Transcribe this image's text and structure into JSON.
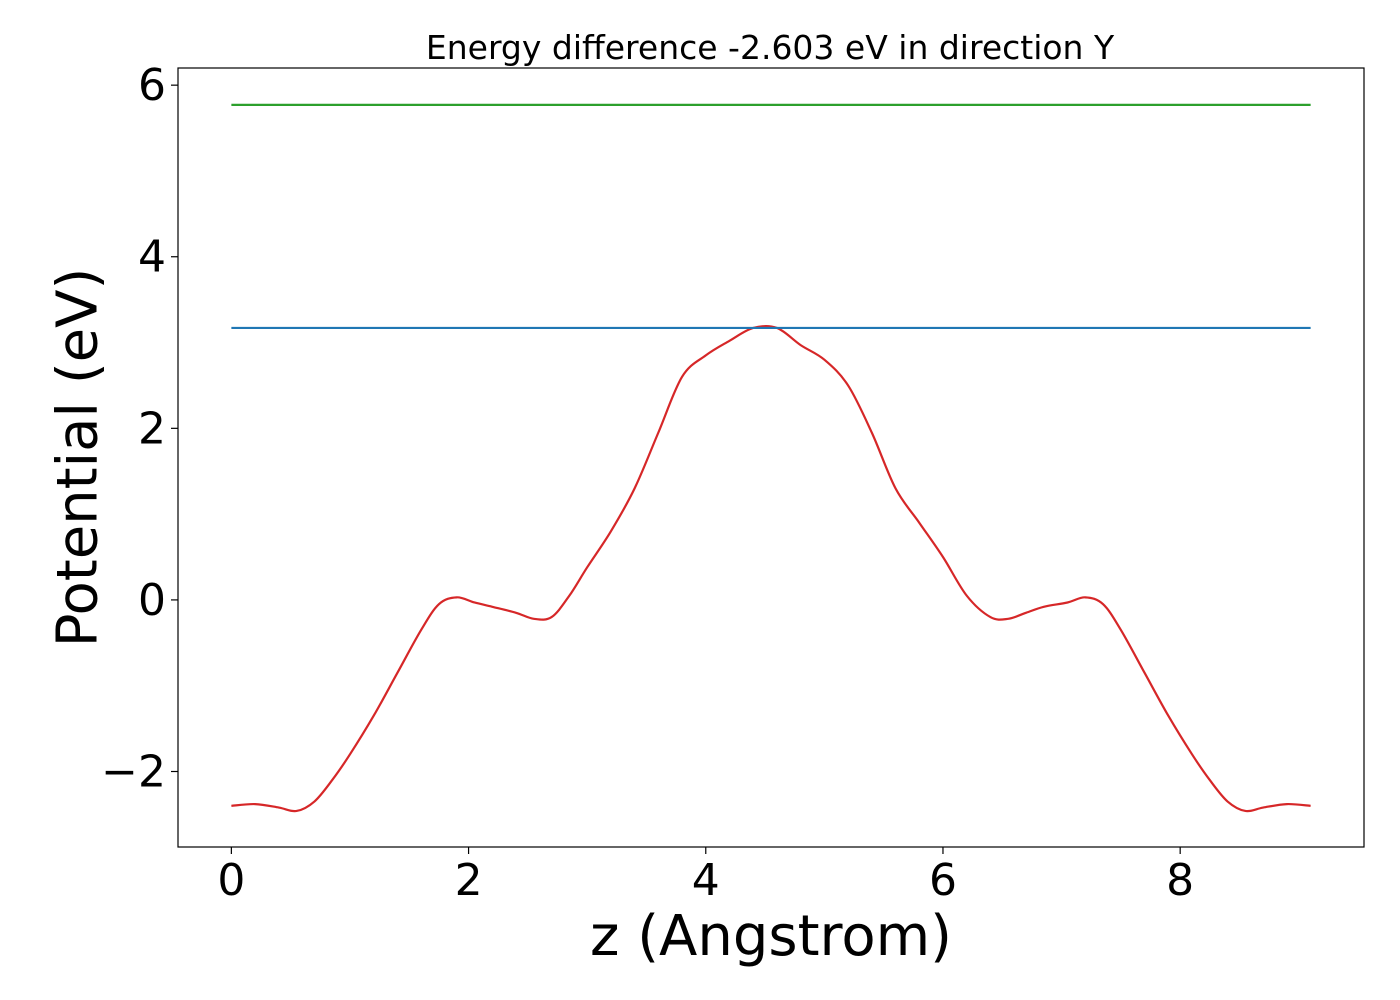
{
  "chart_data": {
    "type": "line",
    "title": "Energy difference -2.603 eV in direction Y",
    "xlabel": "z (Angstrom)",
    "ylabel": "Potential (eV)",
    "xlim": [
      -0.45,
      9.55
    ],
    "ylim": [
      -2.88,
      6.2
    ],
    "xticks": [
      0,
      2,
      4,
      6,
      8
    ],
    "xtick_labels": [
      "0",
      "2",
      "4",
      "6",
      "8"
    ],
    "yticks": [
      -2,
      0,
      2,
      4,
      6
    ],
    "ytick_labels": [
      "−2",
      "0",
      "2",
      "4",
      "6"
    ],
    "grid": false,
    "legend": "none",
    "series": [
      {
        "color": "#d62728",
        "x": [
          0,
          0.2,
          0.4,
          0.55,
          0.7,
          0.85,
          1.0,
          1.2,
          1.4,
          1.6,
          1.75,
          1.9,
          2.05,
          2.2,
          2.4,
          2.55,
          2.7,
          2.85,
          3.0,
          3.2,
          3.4,
          3.6,
          3.8,
          4.0,
          4.2,
          4.4,
          4.6,
          4.8,
          5.0,
          5.2,
          5.4,
          5.6,
          5.8,
          6.0,
          6.2,
          6.4,
          6.55,
          6.7,
          6.85,
          7.05,
          7.2,
          7.35,
          7.5,
          7.7,
          7.9,
          8.1,
          8.25,
          8.4,
          8.55,
          8.7,
          8.9,
          9.1
        ],
        "y": [
          -2.4,
          -2.38,
          -2.42,
          -2.46,
          -2.35,
          -2.1,
          -1.8,
          -1.35,
          -0.85,
          -0.35,
          -0.05,
          0.03,
          -0.03,
          -0.08,
          -0.15,
          -0.22,
          -0.2,
          0.05,
          0.38,
          0.8,
          1.3,
          1.95,
          2.6,
          2.85,
          3.02,
          3.17,
          3.17,
          2.97,
          2.8,
          2.5,
          1.95,
          1.3,
          0.9,
          0.5,
          0.05,
          -0.2,
          -0.22,
          -0.15,
          -0.08,
          -0.03,
          0.03,
          -0.05,
          -0.35,
          -0.85,
          -1.35,
          -1.8,
          -2.1,
          -2.35,
          -2.46,
          -2.42,
          -2.38,
          -2.4
        ]
      },
      {
        "color": "#1f77b4",
        "x": [
          0,
          9.1
        ],
        "y": [
          3.17,
          3.17
        ]
      },
      {
        "color": "#2ca02c",
        "x": [
          0,
          9.1
        ],
        "y": [
          5.77,
          5.77
        ]
      }
    ]
  }
}
